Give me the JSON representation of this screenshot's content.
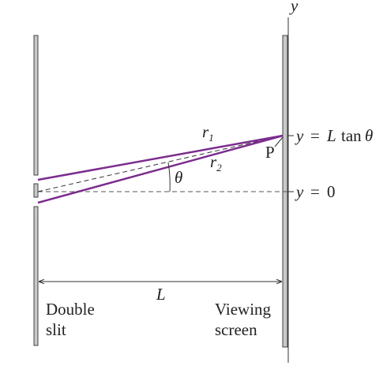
{
  "axis_label": "y",
  "path_labels": {
    "r1": {
      "symbol": "r",
      "subscript": "1"
    },
    "r2": {
      "symbol": "r",
      "subscript": "2"
    }
  },
  "point_label": "P",
  "angle_label": "θ",
  "position_labels": {
    "top": [
      "y",
      "=",
      "L",
      "tan",
      "θ"
    ],
    "zero": [
      "y",
      "=",
      "0"
    ]
  },
  "distance_label": "L",
  "slit_label": [
    "Double",
    "slit"
  ],
  "screen_label": [
    "Viewing",
    "screen"
  ]
}
